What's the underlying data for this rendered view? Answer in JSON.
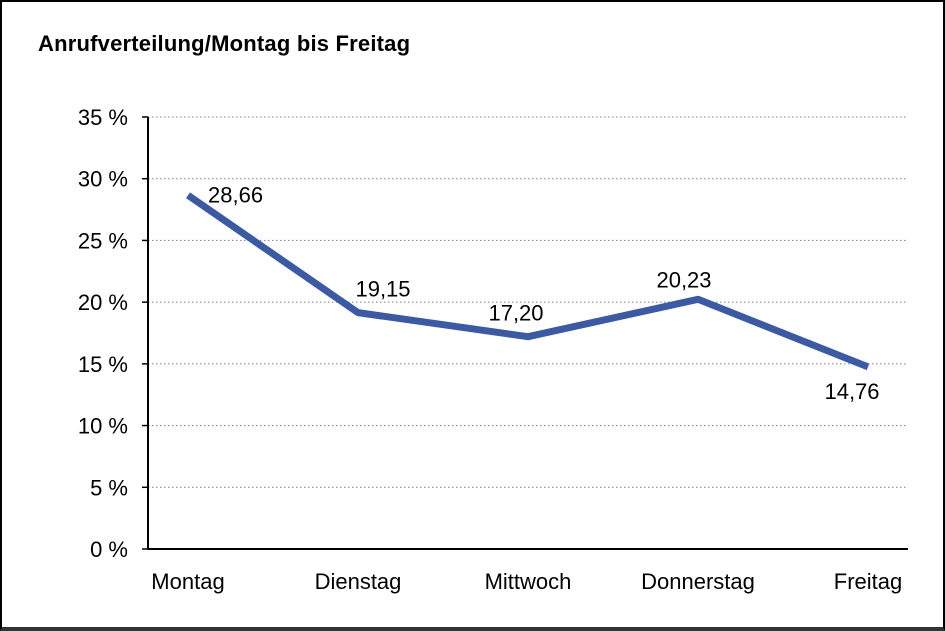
{
  "frame": {
    "background": "#ffffff",
    "border_color": "#000000"
  },
  "chart_data": {
    "type": "line",
    "title": "Anrufverteilung/Montag bis Freitag",
    "categories": [
      "Montag",
      "Dienstag",
      "Mittwoch",
      "Donnerstag",
      "Freitag"
    ],
    "series": [
      {
        "name": "Anrufverteilung",
        "values": [
          28.66,
          19.15,
          17.2,
          20.23,
          14.76
        ]
      }
    ],
    "data_labels": [
      "28,66",
      "19,15",
      "17,20",
      "20,23",
      "14,76"
    ],
    "y_ticks": [
      {
        "value": 0,
        "label": "0 %"
      },
      {
        "value": 5,
        "label": "5 %"
      },
      {
        "value": 10,
        "label": "10 %"
      },
      {
        "value": 15,
        "label": "15 %"
      },
      {
        "value": 20,
        "label": "20 %"
      },
      {
        "value": 25,
        "label": "25 %"
      },
      {
        "value": 30,
        "label": "30 %"
      },
      {
        "value": 35,
        "label": "35 %"
      }
    ],
    "ylim": [
      0,
      35
    ],
    "xlabel": "",
    "ylabel": "",
    "grid": "horizontal-dotted",
    "legend": "none",
    "line_color": "#3a5aa6",
    "grid_color": "#7f7f7f",
    "axis_color": "#000000",
    "text_color": "#000000"
  }
}
